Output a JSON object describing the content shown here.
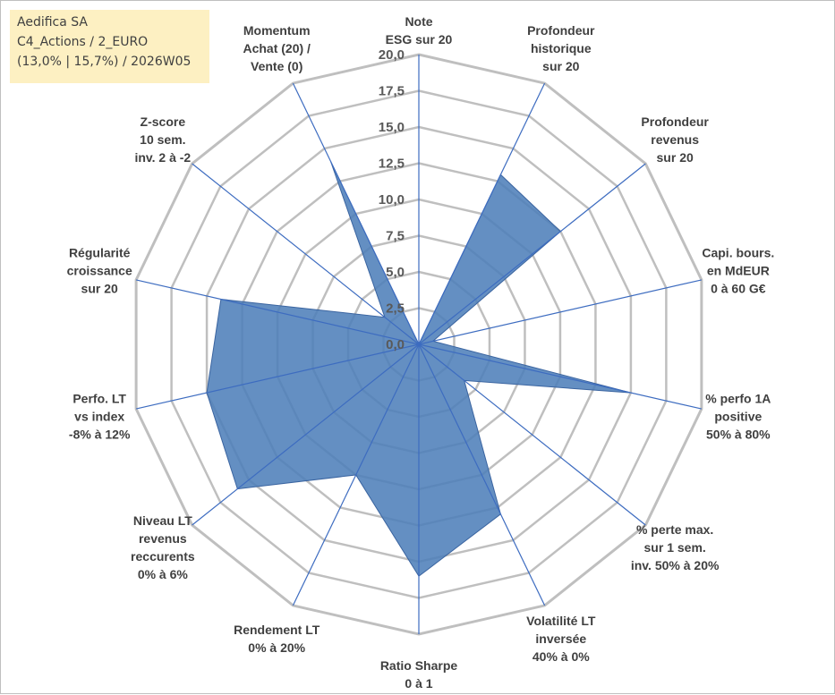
{
  "title_box": {
    "line1": "Aedifica SA",
    "line2": "C4_Actions / 2_EURO",
    "line3": "(13,0% | 15,7%) / 2026W05"
  },
  "chart_data": {
    "type": "radar",
    "rmin": 0,
    "rmax": 20,
    "ticks": [
      "0,0",
      "2,5",
      "5,0",
      "7,5",
      "10,0",
      "12,5",
      "15,0",
      "17,5",
      "20,0"
    ],
    "tick_values": [
      0,
      2.5,
      5,
      7.5,
      10,
      12.5,
      15,
      17.5,
      20
    ],
    "axes": [
      {
        "label": [
          "Note",
          "ESG sur 20"
        ],
        "value": 0
      },
      {
        "label": [
          "Profondeur",
          "historique",
          "sur 20"
        ],
        "value": 13
      },
      {
        "label": [
          "Profondeur",
          "revenus",
          "sur 20"
        ],
        "value": 12.5
      },
      {
        "label": [
          "Capi. bours.",
          "en MdEUR",
          "0 à 60 G€"
        ],
        "value": 1
      },
      {
        "label": [
          "% perfo 1A",
          "positive",
          "50% à 80%"
        ],
        "value": 15
      },
      {
        "label": [
          "% perte max.",
          "sur 1 sem.",
          "inv. 50% à 20%"
        ],
        "value": 4
      },
      {
        "label": [
          "Volatilité LT",
          "inversée",
          "40% à 0%"
        ],
        "value": 13
      },
      {
        "label": [
          "Ratio Sharpe",
          "0 à 1"
        ],
        "value": 16
      },
      {
        "label": [
          "Rendement LT",
          "0% à 20%"
        ],
        "value": 10
      },
      {
        "label": [
          "Niveau LT",
          "revenus",
          "reccurents",
          "0% à 6%"
        ],
        "value": 16
      },
      {
        "label": [
          "Perfo. LT",
          "vs index",
          "-8% à 12%"
        ],
        "value": 15
      },
      {
        "label": [
          "Régularité",
          "croissance",
          "sur 20"
        ],
        "value": 14
      },
      {
        "label": [
          "Z-score",
          "10 sem.",
          "inv. 2 à -2"
        ],
        "value": 3
      },
      {
        "label": [
          "Momentum",
          "Achat (20) /",
          "Vente (0)"
        ],
        "value": 14
      }
    ],
    "series_color": "#4f7fba",
    "grid_color": "#bfbfbf",
    "spoke_color": "#3d6cc0"
  }
}
